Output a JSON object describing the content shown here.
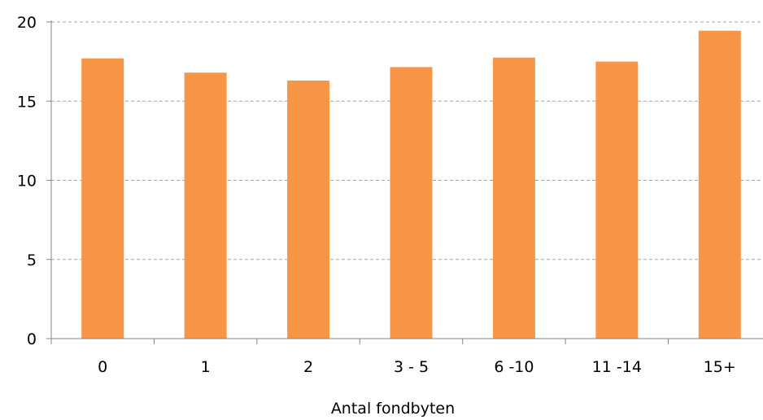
{
  "chart_data": {
    "type": "bar",
    "title": "",
    "xlabel": "Antal fondbyten",
    "ylabel": "",
    "categories": [
      "0",
      "1",
      "2",
      "3 - 5",
      "6 -10",
      "11 -14",
      "15+"
    ],
    "values": [
      17.7,
      16.8,
      16.3,
      17.15,
      17.75,
      17.5,
      19.45
    ],
    "ylim": [
      0,
      20
    ],
    "yticks": [
      0,
      5,
      10,
      15,
      20
    ],
    "grid": "horizontal dashed",
    "legend": "none",
    "bar_color": "#F79646",
    "grid_color": "#A6A6A6",
    "axis_color": "#868686"
  }
}
